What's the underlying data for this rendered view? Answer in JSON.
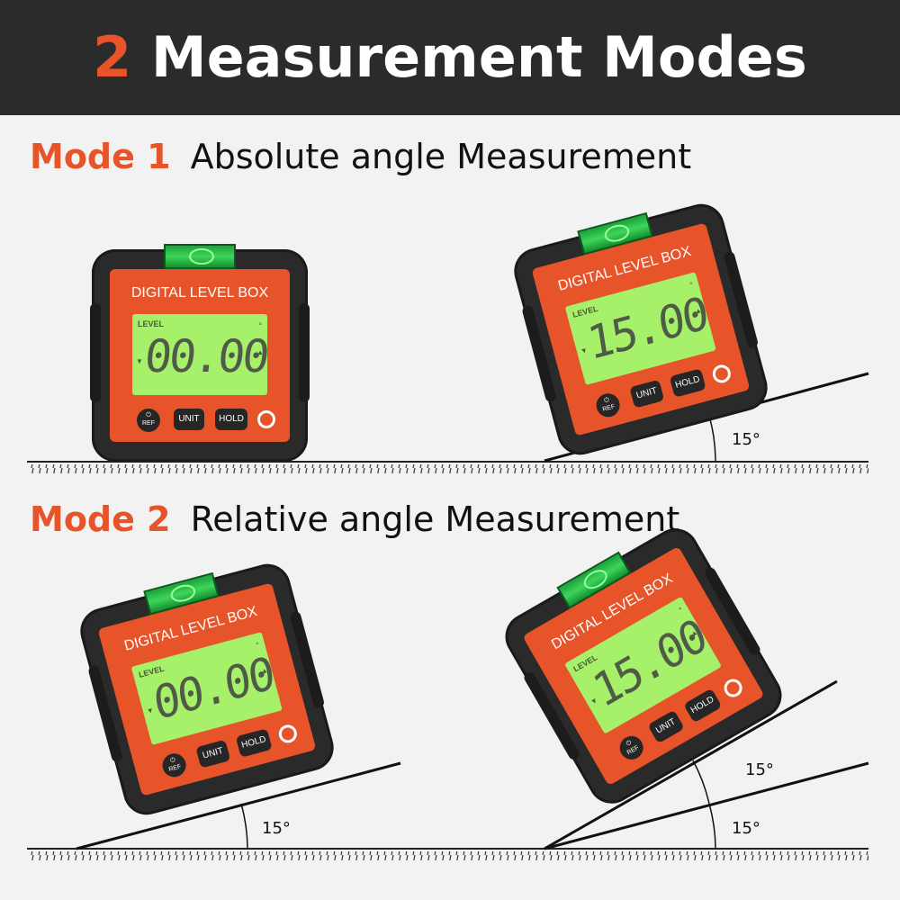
{
  "header": {
    "number": "2",
    "title": "Measurement Modes"
  },
  "modes": [
    {
      "tag": "Mode 1",
      "title": "Absolute angle Measurement"
    },
    {
      "tag": "Mode 2",
      "title": "Relative angle Measurement"
    }
  ],
  "device": {
    "brand": "DIGITAL LEVEL BOX",
    "level_label": "LEVEL",
    "degree_symbol": "°",
    "ref_label": "REF",
    "unit_label": "UNIT",
    "hold_label": "HOLD"
  },
  "readings": [
    "00.00",
    "15.00",
    "00.00",
    "15.00"
  ],
  "angles": [
    "15°",
    "15°",
    "15°",
    "15°"
  ],
  "colors": {
    "accent": "#e8542a",
    "header_bg": "#2b2b2b",
    "lcd": "#a6f06a"
  }
}
